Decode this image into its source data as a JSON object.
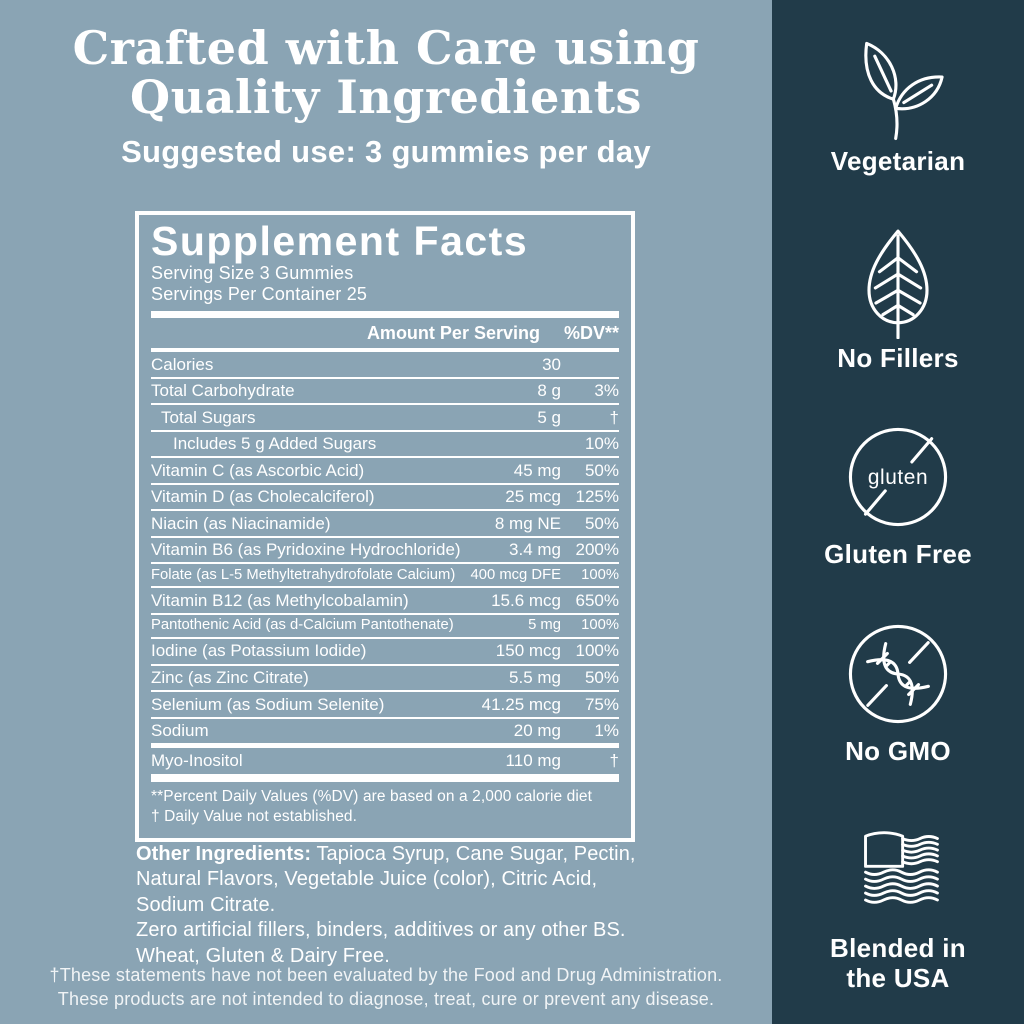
{
  "colors": {
    "background": "#8AA4B4",
    "sidebar": "#213B49",
    "foreground": "#FFFFFF"
  },
  "header": {
    "title": "Crafted with Care using\nQuality Ingredients",
    "subtitle": "Suggested use: 3 gummies per day"
  },
  "supplement_facts": {
    "title": "Supplement Facts",
    "serving_size": "Serving Size 3 Gummies",
    "servings_per_container": "Servings Per Container 25",
    "col_amount": "Amount Per Serving",
    "col_dv": "%DV**",
    "rows": [
      {
        "name": "Calories",
        "amount": "30",
        "dv": "",
        "indent": 0,
        "sep": "medium"
      },
      {
        "name": "Total Carbohydrate",
        "amount": "8 g",
        "dv": "3%",
        "indent": 0,
        "sep": "thin"
      },
      {
        "name": "Total Sugars",
        "amount": "5 g",
        "dv": "†",
        "indent": 1,
        "sep": "thin"
      },
      {
        "name": "Includes 5 g Added Sugars",
        "amount": "",
        "dv": "10%",
        "indent": 2,
        "sep": "thin"
      },
      {
        "name": "Vitamin C (as Ascorbic Acid)",
        "amount": "45 mg",
        "dv": "50%",
        "indent": 0,
        "sep": "thin"
      },
      {
        "name": "Vitamin D (as Cholecalciferol)",
        "amount": "25 mcg",
        "dv": "125%",
        "indent": 0,
        "sep": "thin"
      },
      {
        "name": "Niacin (as Niacinamide)",
        "amount": "8 mg NE",
        "dv": "50%",
        "indent": 0,
        "sep": "thin"
      },
      {
        "name": "Vitamin B6 (as Pyridoxine Hydrochloride)",
        "amount": "3.4 mg",
        "dv": "200%",
        "indent": 0,
        "sep": "thin"
      },
      {
        "name": "Folate (as L-5 Methyltetrahydrofolate Calcium)",
        "amount": "400 mcg DFE",
        "dv": "100%",
        "indent": 0,
        "sep": "thin",
        "size": "s"
      },
      {
        "name": "Vitamin B12 (as Methylcobalamin)",
        "amount": "15.6 mcg",
        "dv": "650%",
        "indent": 0,
        "sep": "thin"
      },
      {
        "name": "Pantothenic Acid (as d-Calcium Pantothenate)",
        "amount": "5 mg",
        "dv": "100%",
        "indent": 0,
        "sep": "thin",
        "size": "s"
      },
      {
        "name": "Iodine (as Potassium Iodide)",
        "amount": "150 mcg",
        "dv": "100%",
        "indent": 0,
        "sep": "thin"
      },
      {
        "name": "Zinc (as Zinc Citrate)",
        "amount": "5.5 mg",
        "dv": "50%",
        "indent": 0,
        "sep": "thin"
      },
      {
        "name": "Selenium (as Sodium Selenite)",
        "amount": "41.25 mcg",
        "dv": "75%",
        "indent": 0,
        "sep": "thin"
      },
      {
        "name": "Sodium",
        "amount": "20 mg",
        "dv": "1%",
        "indent": 0,
        "sep": "thin"
      },
      {
        "name": "Myo-Inositol",
        "amount": "110 mg",
        "dv": "†",
        "indent": 0,
        "sep": "thick"
      }
    ],
    "footnote_line1": "**Percent Daily Values (%DV) are based on a 2,000 calorie diet",
    "footnote_line2": "† Daily Value not established."
  },
  "other_ingredients": {
    "label": "Other Ingredients:",
    "list": " Tapioca Syrup, Cane Sugar, Pectin,\nNatural Flavors, Vegetable Juice (color), Citric Acid,\nSodium Citrate.",
    "line2": "Zero artificial fillers, binders, additives or any other BS.",
    "line3": "Wheat, Gluten & Dairy Free."
  },
  "disclaimer": {
    "line1": "†These statements have not been evaluated by the Food and Drug Administration.",
    "line2": "These products are not intended to diagnose, treat, cure or prevent any disease."
  },
  "badges": [
    {
      "icon": "leaf-sprig-icon",
      "label": "Vegetarian"
    },
    {
      "icon": "leaf-veins-icon",
      "label": "No Fillers"
    },
    {
      "icon": "gluten-crossed-circle-icon",
      "icon_text": "gluten",
      "label": "Gluten Free"
    },
    {
      "icon": "dna-crossed-circle-icon",
      "label": "No GMO"
    },
    {
      "icon": "usa-flag-icon",
      "label": "Blended in\nthe USA"
    }
  ]
}
